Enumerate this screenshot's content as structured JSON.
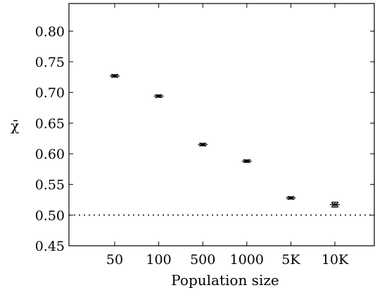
{
  "chart_data": {
    "type": "scatter",
    "title": "",
    "xlabel": "Population size",
    "ylabel": "χ̄",
    "categories": [
      "50",
      "100",
      "500",
      "1000",
      "5K",
      "10K"
    ],
    "series": [
      {
        "values": [
          0.727,
          0.694,
          0.615,
          0.588,
          0.528,
          0.517
        ],
        "errors": [
          0.002,
          0.002,
          0.002,
          0.002,
          0.002,
          0.004
        ],
        "marker": "x",
        "color": "#000000"
      }
    ],
    "ylim": [
      0.45,
      0.845
    ],
    "yticks": [
      0.45,
      0.5,
      0.55,
      0.6,
      0.65,
      0.7,
      0.75,
      0.8
    ],
    "ytick_labels": [
      "0.45",
      "0.50",
      "0.55",
      "0.60",
      "0.65",
      "0.70",
      "0.75",
      "0.80"
    ],
    "reference_line": {
      "y": 0.5,
      "style": "dotted",
      "color": "#000000"
    },
    "grid": false,
    "legend": "none"
  }
}
